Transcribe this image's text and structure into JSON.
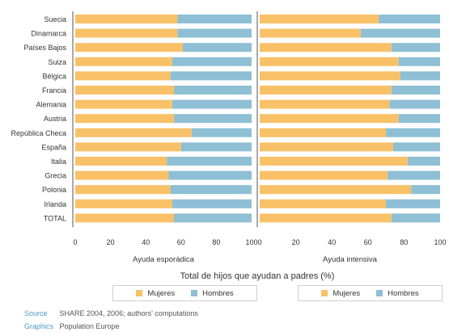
{
  "colors": {
    "mujeres": "#f9c167",
    "hombres": "#8ebfd5",
    "axis": "#555555"
  },
  "chart_data": {
    "type": "bar",
    "orientation": "horizontal",
    "stacked": true,
    "xlabel": "Total de hijos que ayudan a padres (%)",
    "xlim": [
      0,
      100
    ],
    "xticks": [
      "0",
      "20",
      "40",
      "60",
      "80",
      "100"
    ],
    "categories": [
      "Suecia",
      "Dinamarca",
      "Países Bajos",
      "Suiza",
      "Bélgica",
      "Francia",
      "Alemania",
      "Austria",
      "República Checa",
      "España",
      "Italia",
      "Grecia",
      "Polonia",
      "Irlanda",
      "TOTAL"
    ],
    "panels": [
      {
        "title": "Ayuda esporádica",
        "series": [
          {
            "name": "Mujeres",
            "values": [
              58,
              58,
              61,
              55,
              54,
              56,
              55,
              56,
              66,
              60,
              52,
              53,
              54,
              55,
              56
            ]
          },
          {
            "name": "Hombres",
            "values": [
              42,
              42,
              39,
              45,
              46,
              44,
              45,
              44,
              34,
              40,
              48,
              47,
              46,
              45,
              44
            ]
          }
        ]
      },
      {
        "title": "Ayuda intensiva",
        "series": [
          {
            "name": "Mujeres",
            "values": [
              66,
              56,
              73,
              77,
              78,
              73,
              72,
              77,
              70,
              74,
              82,
              71,
              84,
              70,
              73
            ]
          },
          {
            "name": "Hombres",
            "values": [
              34,
              44,
              27,
              23,
              22,
              27,
              28,
              23,
              30,
              26,
              18,
              29,
              16,
              30,
              27
            ]
          }
        ]
      }
    ]
  },
  "legends": [
    {
      "mujeres": "Mujeres",
      "hombres": "Hombres"
    },
    {
      "mujeres": "Mujeres",
      "hombres": "Hombres"
    }
  ],
  "footer": {
    "source_key": "Source",
    "source_text": "SHARE 2004, 2006; authors' computations",
    "graphics_key": "Graphics",
    "graphics_text": "Population Europe"
  }
}
